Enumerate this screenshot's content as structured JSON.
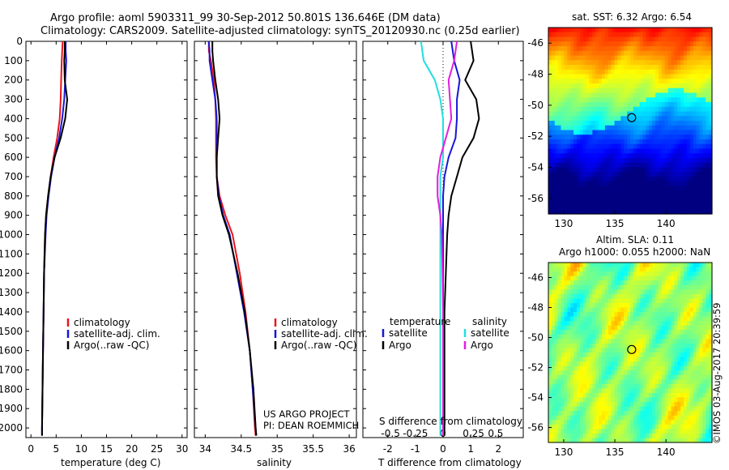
{
  "header": {
    "line1": "Argo profile: aoml 5903311_99 30-Sep-2012 50.801S 136.646E (DM data)",
    "line2": "Climatology: CARS2009. Satellite-adjusted climatology: synTS_20120930.nc (0.25d earlier)"
  },
  "credit": {
    "project": "US ARGO PROJECT",
    "pi": "PI: DEAN ROEMMICH",
    "watermark": "©IMOS 03-Aug-2017 20:39:59"
  },
  "colors": {
    "climatology": "#e8141c",
    "satellite": "#1616d8",
    "argo": "#000000",
    "salinity_satellite": "#22dede",
    "salinity_argo": "#e01ee0"
  },
  "chart_data": [
    {
      "type": "line",
      "panel": "temperature",
      "xlabel": "temperature (deg C)",
      "ylabel": "",
      "xlim": [
        -1,
        31
      ],
      "ylim": [
        2050,
        0
      ],
      "xticks": [
        0,
        5,
        10,
        15,
        20,
        25,
        30
      ],
      "yticks": [
        0,
        100,
        200,
        300,
        400,
        500,
        600,
        700,
        800,
        900,
        1000,
        1100,
        1200,
        1300,
        1400,
        1500,
        1600,
        1700,
        1800,
        1900,
        2000
      ],
      "legend": [
        "climatology",
        "satellite-adj. clim.",
        "Argo(..raw -QC)"
      ],
      "legend_position": "center",
      "series": [
        {
          "name": "climatology",
          "x": [
            6.3,
            6.2,
            6.1,
            6.0,
            5.9,
            5.7,
            5.2,
            4.5,
            3.9,
            3.4,
            3.0,
            2.8,
            2.6,
            2.5,
            2.4,
            2.3,
            2.2,
            2.2
          ],
          "y": [
            0,
            50,
            100,
            200,
            300,
            400,
            500,
            600,
            700,
            800,
            900,
            1000,
            1200,
            1400,
            1600,
            1800,
            2000,
            2040
          ]
        },
        {
          "name": "satellite-adj. clim.",
          "x": [
            6.9,
            6.9,
            7.0,
            6.8,
            6.6,
            6.2,
            5.6,
            4.7,
            4.0,
            3.5,
            3.1,
            2.9,
            2.6,
            2.5,
            2.4,
            2.3,
            2.2,
            2.2
          ],
          "y": [
            0,
            50,
            100,
            200,
            300,
            400,
            500,
            600,
            700,
            800,
            900,
            1000,
            1200,
            1400,
            1600,
            1800,
            2000,
            2040
          ]
        },
        {
          "name": "Argo(..raw -QC)",
          "x": [
            6.7,
            6.7,
            6.6,
            6.7,
            7.2,
            6.8,
            5.9,
            4.7,
            3.9,
            3.4,
            3.0,
            2.8,
            2.6,
            2.5,
            2.4,
            2.3,
            2.2,
            2.2
          ],
          "y": [
            0,
            50,
            100,
            200,
            300,
            400,
            500,
            600,
            700,
            800,
            900,
            1000,
            1200,
            1400,
            1600,
            1800,
            2000,
            2040
          ]
        }
      ]
    },
    {
      "type": "line",
      "panel": "salinity",
      "xlabel": "salinity",
      "ylabel": "",
      "xlim": [
        33.85,
        36.1
      ],
      "ylim": [
        2050,
        0
      ],
      "xticks": [
        34,
        34.5,
        35,
        35.5,
        36
      ],
      "legend": [
        "climatology",
        "satellite-adj. clim.",
        "Argo(..raw -QC)"
      ],
      "legend_position": "center",
      "series": [
        {
          "name": "climatology",
          "x": [
            34.05,
            34.05,
            34.08,
            34.12,
            34.14,
            34.15,
            34.15,
            34.15,
            34.16,
            34.2,
            34.28,
            34.38,
            34.48,
            34.56,
            34.62,
            34.66,
            34.69,
            34.7
          ],
          "y": [
            0,
            50,
            100,
            200,
            300,
            400,
            500,
            600,
            700,
            800,
            900,
            1000,
            1200,
            1400,
            1600,
            1800,
            2000,
            2040
          ]
        },
        {
          "name": "satellite-adj. clim.",
          "x": [
            34.05,
            34.06,
            34.06,
            34.1,
            34.14,
            34.16,
            34.16,
            34.16,
            34.16,
            34.19,
            34.25,
            34.34,
            34.44,
            34.54,
            34.62,
            34.66,
            34.7,
            34.71
          ],
          "y": [
            0,
            50,
            100,
            200,
            300,
            400,
            500,
            600,
            700,
            800,
            900,
            1000,
            1200,
            1400,
            1600,
            1800,
            2000,
            2040
          ]
        },
        {
          "name": "Argo(..raw -QC)",
          "x": [
            34.1,
            34.1,
            34.11,
            34.14,
            34.18,
            34.2,
            34.18,
            34.16,
            34.16,
            34.18,
            34.24,
            34.33,
            34.45,
            34.55,
            34.62,
            34.67,
            34.7,
            34.71
          ],
          "y": [
            0,
            50,
            100,
            200,
            300,
            400,
            500,
            600,
            700,
            800,
            900,
            1000,
            1200,
            1400,
            1600,
            1800,
            2000,
            2040
          ]
        }
      ]
    },
    {
      "type": "line",
      "panel": "difference",
      "xlabel": "T difference from climatology",
      "xlabel_top": "S difference from climatology",
      "xlim": [
        -2.9,
        2.9
      ],
      "ylim": [
        2050,
        0
      ],
      "xticks": [
        -2,
        -1,
        0,
        1,
        2
      ],
      "xticks_salinity": [
        "-0.5",
        "-0.25",
        "0",
        "0.25",
        "0.5"
      ],
      "legend_groups": {
        "temperature": [
          "satellite",
          "Argo"
        ],
        "salinity": [
          "satellite",
          "Argo"
        ]
      },
      "legend_position": "lower center",
      "series": [
        {
          "name": "temperature satellite",
          "x": [
            0.3,
            0.4,
            0.6,
            0.5,
            0.5,
            0.45,
            0.2,
            0.05,
            0.0,
            0.0,
            0.0,
            0.0,
            0.0,
            0.0,
            0.0,
            0.0,
            0.0
          ],
          "y": [
            0,
            100,
            200,
            300,
            400,
            500,
            600,
            700,
            800,
            900,
            1000,
            1200,
            1400,
            1600,
            1800,
            2000,
            2040
          ]
        },
        {
          "name": "temperature Argo",
          "x": [
            1.0,
            1.1,
            0.8,
            1.2,
            1.3,
            1.1,
            0.7,
            0.5,
            0.3,
            0.2,
            0.15,
            0.1,
            0.05,
            0.05,
            0.05,
            0.05,
            0.05
          ],
          "y": [
            0,
            100,
            200,
            300,
            400,
            500,
            600,
            700,
            800,
            900,
            1000,
            1200,
            1400,
            1600,
            1800,
            2000,
            2040
          ]
        },
        {
          "name": "salinity satellite",
          "x": [
            -0.8,
            -0.7,
            -0.3,
            -0.1,
            0.0,
            0.0,
            0.0,
            -0.1,
            -0.1,
            -0.1,
            -0.1,
            -0.1,
            -0.1,
            -0.1,
            -0.1,
            -0.1,
            -0.1
          ],
          "y": [
            0,
            100,
            200,
            300,
            400,
            500,
            600,
            700,
            800,
            900,
            1000,
            1200,
            1400,
            1600,
            1800,
            2000,
            2040
          ]
        },
        {
          "name": "salinity Argo",
          "x": [
            0.5,
            0.4,
            0.2,
            0.25,
            0.3,
            0.1,
            -0.1,
            -0.2,
            -0.2,
            -0.1,
            -0.05,
            -0.02,
            0.0,
            0.0,
            0.0,
            0.0,
            0.0
          ],
          "y": [
            0,
            100,
            200,
            300,
            400,
            500,
            600,
            700,
            800,
            900,
            1000,
            1200,
            1400,
            1600,
            1800,
            2000,
            2040
          ]
        }
      ]
    },
    {
      "type": "heatmap",
      "panel": "sst map",
      "title": "sat. SST: 6.32 Argo: 6.54",
      "xlim": [
        128.5,
        144.5
      ],
      "ylim": [
        -57,
        -45
      ],
      "xticks": [
        130,
        135,
        140
      ],
      "yticks": [
        -46,
        -48,
        -50,
        -52,
        -54,
        -56
      ],
      "marker": {
        "lon": 136.646,
        "lat": -50.801
      },
      "colormap": "jet",
      "field": "sea surface temperature"
    },
    {
      "type": "heatmap",
      "panel": "sla map",
      "title": "Altim. SLA: 0.11",
      "subtitle": "Argo h1000: 0.055 h2000: NaN",
      "xlim": [
        128.5,
        144.5
      ],
      "ylim": [
        -57,
        -45
      ],
      "xticks": [
        130,
        135,
        140
      ],
      "yticks": [
        -46,
        -48,
        -50,
        -52,
        -54,
        -56
      ],
      "marker": {
        "lon": 136.646,
        "lat": -50.801
      },
      "colormap": "jet",
      "field": "sea level anomaly"
    }
  ]
}
